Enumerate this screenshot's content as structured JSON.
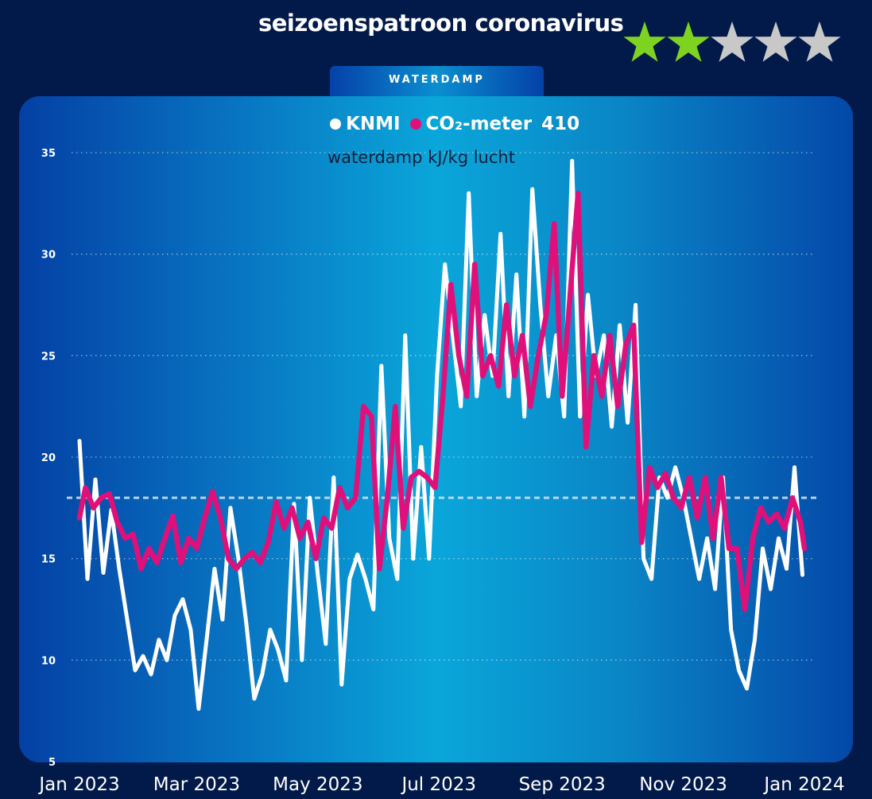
{
  "title": "seizoenspatroon coronavirus",
  "rating": {
    "value": 2,
    "max": 5,
    "on_color": "#7ed321",
    "off_color": "#c8c8c8"
  },
  "tab": {
    "label": "WATERDAMP"
  },
  "legend": {
    "knmi": {
      "label": "KNMI",
      "color": "#ffffff"
    },
    "co2": {
      "label": "CO₂-meter",
      "color": "#e0107a"
    },
    "value": "410"
  },
  "subtitle": "waterdamp kJ/kg lucht",
  "chart_data": {
    "type": "line",
    "ylim": [
      5,
      35
    ],
    "y_ticks": [
      5,
      10,
      15,
      20,
      25,
      30,
      35
    ],
    "x_range": [
      "2023-01-01",
      "2024-01-01"
    ],
    "x_ticks": [
      {
        "date": "2023-01-01",
        "label": "Jan 2023"
      },
      {
        "date": "2023-03-01",
        "label": "Mar 2023"
      },
      {
        "date": "2023-05-01",
        "label": "May 2023"
      },
      {
        "date": "2023-07-01",
        "label": "Jul 2023"
      },
      {
        "date": "2023-09-01",
        "label": "Sep 2023"
      },
      {
        "date": "2023-11-01",
        "label": "Nov 2023"
      },
      {
        "date": "2024-01-01",
        "label": "Jan 2024"
      }
    ],
    "grid": true,
    "reference_line": 18,
    "series": [
      {
        "name": "KNMI",
        "color": "#ffffff",
        "points": [
          [
            "2023-01-01",
            20.8
          ],
          [
            "2023-01-05",
            14.0
          ],
          [
            "2023-01-09",
            18.9
          ],
          [
            "2023-01-13",
            14.3
          ],
          [
            "2023-01-17",
            17.4
          ],
          [
            "2023-01-21",
            14.5
          ],
          [
            "2023-01-25",
            12.0
          ],
          [
            "2023-01-29",
            9.5
          ],
          [
            "2023-02-02",
            10.2
          ],
          [
            "2023-02-06",
            9.3
          ],
          [
            "2023-02-10",
            11.0
          ],
          [
            "2023-02-14",
            10.0
          ],
          [
            "2023-02-18",
            12.2
          ],
          [
            "2023-02-22",
            13.0
          ],
          [
            "2023-02-26",
            11.5
          ],
          [
            "2023-03-02",
            7.6
          ],
          [
            "2023-03-06",
            11.0
          ],
          [
            "2023-03-10",
            14.5
          ],
          [
            "2023-03-14",
            12.0
          ],
          [
            "2023-03-18",
            17.5
          ],
          [
            "2023-03-22",
            15.0
          ],
          [
            "2023-03-26",
            11.8
          ],
          [
            "2023-03-30",
            8.1
          ],
          [
            "2023-04-03",
            9.3
          ],
          [
            "2023-04-07",
            11.5
          ],
          [
            "2023-04-11",
            10.5
          ],
          [
            "2023-04-15",
            9.0
          ],
          [
            "2023-04-19",
            17.7
          ],
          [
            "2023-04-23",
            10.0
          ],
          [
            "2023-04-27",
            18.0
          ],
          [
            "2023-05-01",
            14.2
          ],
          [
            "2023-05-05",
            10.8
          ],
          [
            "2023-05-09",
            19.0
          ],
          [
            "2023-05-13",
            8.8
          ],
          [
            "2023-05-17",
            14.0
          ],
          [
            "2023-05-21",
            15.2
          ],
          [
            "2023-05-25",
            14.0
          ],
          [
            "2023-05-29",
            12.5
          ],
          [
            "2023-06-02",
            24.5
          ],
          [
            "2023-06-06",
            16.0
          ],
          [
            "2023-06-10",
            14.0
          ],
          [
            "2023-06-14",
            26.0
          ],
          [
            "2023-06-18",
            15.0
          ],
          [
            "2023-06-22",
            20.5
          ],
          [
            "2023-06-26",
            15.0
          ],
          [
            "2023-06-30",
            24.0
          ],
          [
            "2023-07-04",
            29.5
          ],
          [
            "2023-07-08",
            26.0
          ],
          [
            "2023-07-12",
            22.5
          ],
          [
            "2023-07-16",
            33.0
          ],
          [
            "2023-07-20",
            23.0
          ],
          [
            "2023-07-24",
            27.0
          ],
          [
            "2023-07-28",
            24.0
          ],
          [
            "2023-08-01",
            31.0
          ],
          [
            "2023-08-05",
            23.0
          ],
          [
            "2023-08-09",
            29.0
          ],
          [
            "2023-08-13",
            22.0
          ],
          [
            "2023-08-17",
            33.2
          ],
          [
            "2023-08-21",
            27.5
          ],
          [
            "2023-08-25",
            23.0
          ],
          [
            "2023-08-29",
            26.0
          ],
          [
            "2023-09-02",
            22.0
          ],
          [
            "2023-09-06",
            34.6
          ],
          [
            "2023-09-10",
            22.0
          ],
          [
            "2023-09-14",
            28.0
          ],
          [
            "2023-09-18",
            24.0
          ],
          [
            "2023-09-22",
            26.0
          ],
          [
            "2023-09-26",
            21.5
          ],
          [
            "2023-09-30",
            26.5
          ],
          [
            "2023-10-04",
            21.7
          ],
          [
            "2023-10-08",
            27.5
          ],
          [
            "2023-10-12",
            15.0
          ],
          [
            "2023-10-16",
            14.0
          ],
          [
            "2023-10-20",
            19.0
          ],
          [
            "2023-10-24",
            18.0
          ],
          [
            "2023-10-28",
            19.5
          ],
          [
            "2023-11-01",
            18.0
          ],
          [
            "2023-11-05",
            16.0
          ],
          [
            "2023-11-09",
            14.0
          ],
          [
            "2023-11-13",
            16.0
          ],
          [
            "2023-11-17",
            13.5
          ],
          [
            "2023-11-21",
            19.0
          ],
          [
            "2023-11-25",
            11.5
          ],
          [
            "2023-11-29",
            9.5
          ],
          [
            "2023-12-03",
            8.6
          ],
          [
            "2023-12-07",
            11.0
          ],
          [
            "2023-12-11",
            15.5
          ],
          [
            "2023-12-15",
            13.5
          ],
          [
            "2023-12-19",
            16.0
          ],
          [
            "2023-12-23",
            14.5
          ],
          [
            "2023-12-27",
            19.5
          ],
          [
            "2023-12-31",
            14.2
          ]
        ]
      },
      {
        "name": "CO₂-meter",
        "color": "#e0107a",
        "points": [
          [
            "2023-01-01",
            17.0
          ],
          [
            "2023-01-04",
            18.5
          ],
          [
            "2023-01-08",
            17.5
          ],
          [
            "2023-01-12",
            18.0
          ],
          [
            "2023-01-16",
            18.2
          ],
          [
            "2023-01-20",
            16.8
          ],
          [
            "2023-01-24",
            16.0
          ],
          [
            "2023-01-28",
            16.2
          ],
          [
            "2023-02-01",
            14.5
          ],
          [
            "2023-02-05",
            15.5
          ],
          [
            "2023-02-09",
            14.8
          ],
          [
            "2023-02-13",
            16.0
          ],
          [
            "2023-02-17",
            17.1
          ],
          [
            "2023-02-21",
            14.8
          ],
          [
            "2023-02-25",
            16.0
          ],
          [
            "2023-03-01",
            15.5
          ],
          [
            "2023-03-05",
            17.0
          ],
          [
            "2023-03-09",
            18.3
          ],
          [
            "2023-03-13",
            17.0
          ],
          [
            "2023-03-17",
            15.0
          ],
          [
            "2023-03-21",
            14.5
          ],
          [
            "2023-03-25",
            15.0
          ],
          [
            "2023-03-29",
            15.3
          ],
          [
            "2023-04-02",
            14.8
          ],
          [
            "2023-04-06",
            15.8
          ],
          [
            "2023-04-10",
            17.8
          ],
          [
            "2023-04-14",
            16.5
          ],
          [
            "2023-04-18",
            17.5
          ],
          [
            "2023-04-22",
            16.0
          ],
          [
            "2023-04-26",
            16.8
          ],
          [
            "2023-04-30",
            15.0
          ],
          [
            "2023-05-04",
            17.0
          ],
          [
            "2023-05-08",
            16.5
          ],
          [
            "2023-05-12",
            18.5
          ],
          [
            "2023-05-16",
            17.5
          ],
          [
            "2023-05-20",
            18.0
          ],
          [
            "2023-05-24",
            22.5
          ],
          [
            "2023-05-28",
            22.0
          ],
          [
            "2023-06-01",
            14.5
          ],
          [
            "2023-06-05",
            18.0
          ],
          [
            "2023-06-09",
            22.5
          ],
          [
            "2023-06-13",
            16.5
          ],
          [
            "2023-06-17",
            19.0
          ],
          [
            "2023-06-21",
            19.3
          ],
          [
            "2023-06-25",
            19.0
          ],
          [
            "2023-06-29",
            18.5
          ],
          [
            "2023-07-03",
            23.0
          ],
          [
            "2023-07-07",
            28.5
          ],
          [
            "2023-07-11",
            25.0
          ],
          [
            "2023-07-15",
            23.0
          ],
          [
            "2023-07-19",
            29.5
          ],
          [
            "2023-07-23",
            24.0
          ],
          [
            "2023-07-27",
            25.0
          ],
          [
            "2023-07-31",
            23.5
          ],
          [
            "2023-08-04",
            27.5
          ],
          [
            "2023-08-08",
            24.0
          ],
          [
            "2023-08-12",
            26.0
          ],
          [
            "2023-08-16",
            22.5
          ],
          [
            "2023-08-20",
            25.0
          ],
          [
            "2023-08-24",
            27.0
          ],
          [
            "2023-08-28",
            31.5
          ],
          [
            "2023-09-01",
            23.0
          ],
          [
            "2023-09-05",
            28.0
          ],
          [
            "2023-09-09",
            33.0
          ],
          [
            "2023-09-13",
            20.5
          ],
          [
            "2023-09-17",
            25.0
          ],
          [
            "2023-09-21",
            23.0
          ],
          [
            "2023-09-25",
            26.0
          ],
          [
            "2023-09-29",
            22.5
          ],
          [
            "2023-10-03",
            25.5
          ],
          [
            "2023-10-07",
            26.5
          ],
          [
            "2023-10-11",
            15.8
          ],
          [
            "2023-10-15",
            19.5
          ],
          [
            "2023-10-19",
            18.5
          ],
          [
            "2023-10-23",
            19.2
          ],
          [
            "2023-10-27",
            18.0
          ],
          [
            "2023-10-31",
            17.5
          ],
          [
            "2023-11-04",
            19.0
          ],
          [
            "2023-11-08",
            17.0
          ],
          [
            "2023-11-12",
            19.0
          ],
          [
            "2023-11-16",
            16.0
          ],
          [
            "2023-11-20",
            19.0
          ],
          [
            "2023-11-24",
            15.5
          ],
          [
            "2023-11-28",
            15.5
          ],
          [
            "2023-12-02",
            12.5
          ],
          [
            "2023-12-06",
            16.0
          ],
          [
            "2023-12-10",
            17.5
          ],
          [
            "2023-12-14",
            16.8
          ],
          [
            "2023-12-18",
            17.2
          ],
          [
            "2023-12-22",
            16.5
          ],
          [
            "2023-12-26",
            18.0
          ],
          [
            "2023-12-30",
            16.8
          ],
          [
            "2024-01-01",
            15.5
          ]
        ]
      }
    ]
  }
}
